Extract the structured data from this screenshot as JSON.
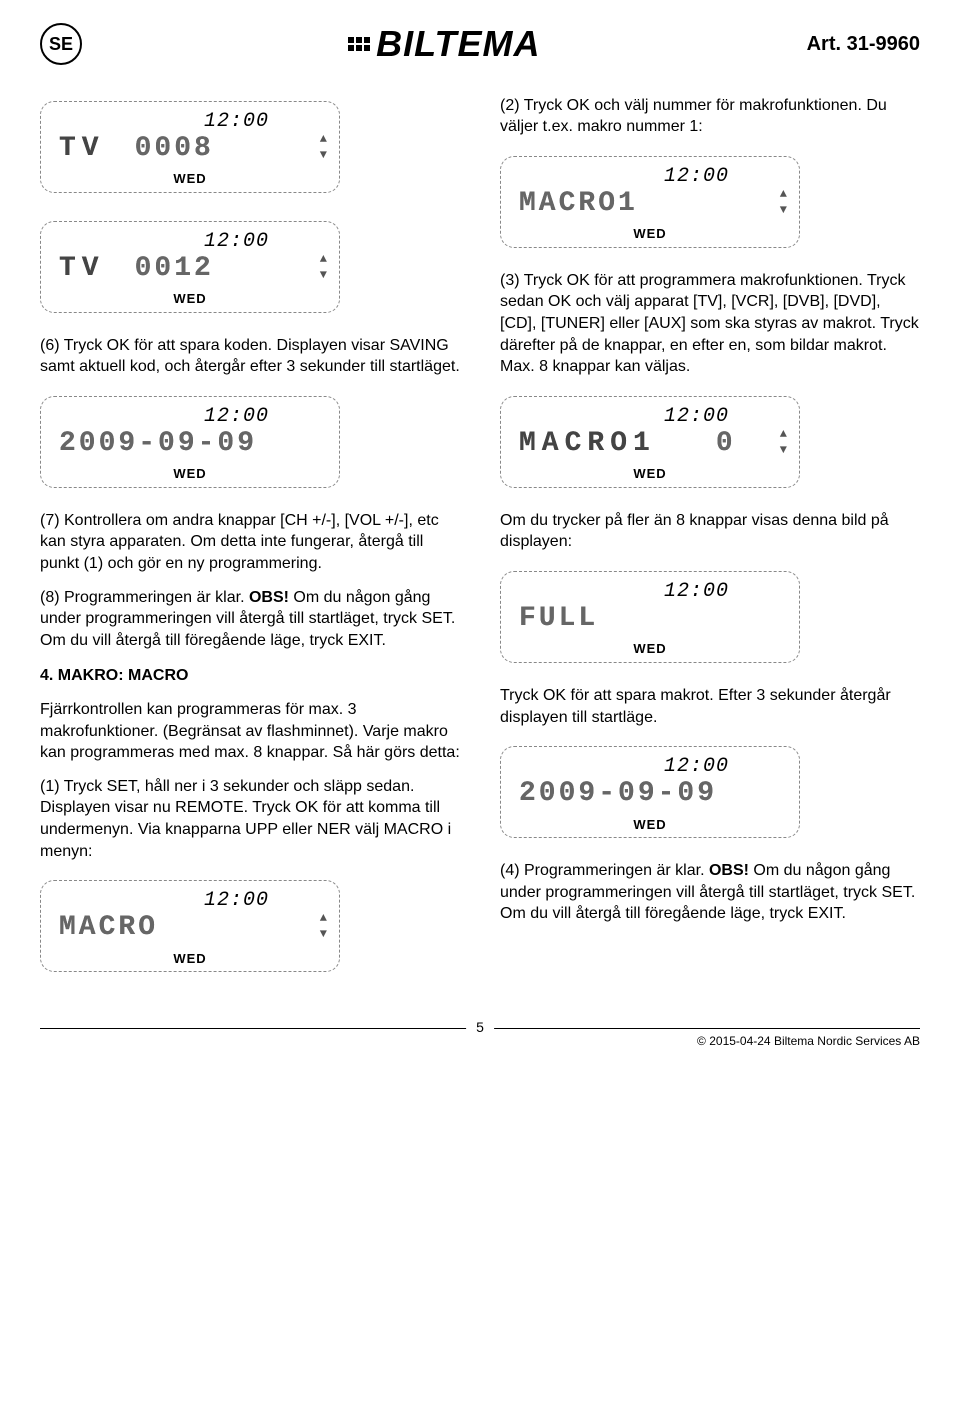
{
  "header": {
    "lang_badge": "SE",
    "logo_text": "BILTEMA",
    "art": "Art. 31-9960"
  },
  "lcd_common": {
    "time": "12:00",
    "day": "WED"
  },
  "lcds": {
    "tv1": {
      "prefix": "TV",
      "main": "0008"
    },
    "tv2": {
      "prefix": "TV",
      "main": "0012"
    },
    "date1": {
      "main": "2009-09-09"
    },
    "macro_menu": {
      "main": "MACRO"
    },
    "macro1": {
      "main": "MACRO1"
    },
    "macro1_count": {
      "prefix": "MACRO1",
      "main": "0"
    },
    "full": {
      "main": "FULL"
    },
    "date2": {
      "main": "2009-09-09"
    }
  },
  "left": {
    "p6": "(6) Tryck OK för att spara koden. Displayen visar SAVING samt aktuell kod, och återgår efter 3 sekunder till startläget.",
    "p7": "(7) Kontrollera om andra knappar [CH +/-], [VOL +/-], etc kan styra apparaten. Om detta inte fungerar, återgå till punkt (1) och gör en ny programmering.",
    "p8a": "(8) Programmeringen är klar. ",
    "p8_obs": "OBS!",
    "p8b": " Om du någon gång under programmeringen vill återgå till startläget, tryck SET. Om du vill återgå till föregående läge, tryck EXIT.",
    "h4": "4. MAKRO: MACRO",
    "pMacro1": "Fjärrkontrollen kan programmeras för max. 3 makrofunktioner. (Begränsat av flashminnet). Varje makro kan programmeras med max. 8 knappar. Så här görs detta:",
    "p1": "(1) Tryck SET, håll ner i 3 sekunder och släpp sedan. Displayen visar nu REMOTE. Tryck OK för att komma till undermenyn. Via knapparna UPP eller NER välj MACRO i menyn:"
  },
  "right": {
    "p2": "(2) Tryck OK och välj nummer för makrofunktionen. Du väljer t.ex. makro nummer 1:",
    "p3": "(3) Tryck OK för att programmera makrofunktionen. Tryck sedan OK och  välj apparat [TV], [VCR], [DVB], [DVD], [CD], [TUNER] eller [AUX] som ska styras av makrot. Tryck därefter på de knappar, en efter en, som bildar makrot. Max. 8 knappar kan väljas.",
    "pFullIntro": "Om du trycker på fler än 8 knappar visas denna bild på displayen:",
    "pSave": "Tryck OK för att spara makrot. Efter 3 sekunder återgår displayen till startläge.",
    "p4a": "(4) Programmeringen är klar. ",
    "p4_obs": "OBS!",
    "p4b": " Om du någon gång under programmeringen vill återgå till startläget, tryck SET. Om du vill återgå till föregående läge, tryck EXIT."
  },
  "footer": {
    "page": "5",
    "copyright": "© 2015-04-24 Biltema Nordic Services AB"
  }
}
